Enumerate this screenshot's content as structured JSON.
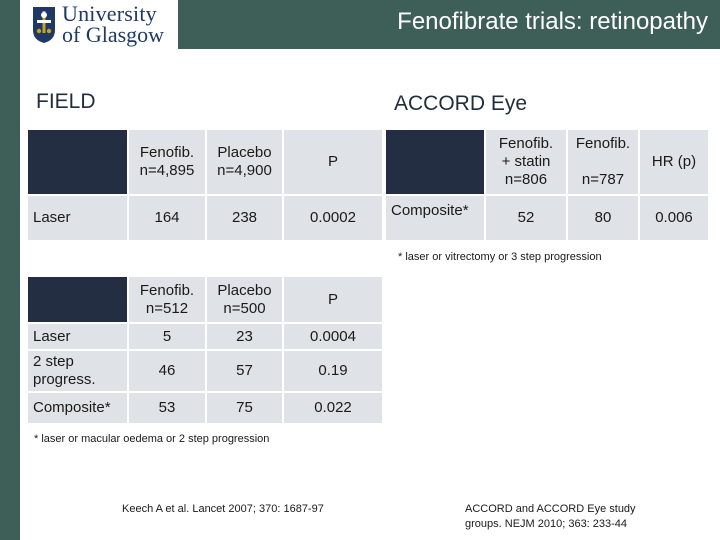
{
  "header": {
    "title": "Fenofibrate trials: retinopathy",
    "logo_line1": "University",
    "logo_line2": "of Glasgow"
  },
  "colors": {
    "header_band": "#3d5f57",
    "table_header_dark": "#232e42",
    "table_cell": "#dfe2e6"
  },
  "field": {
    "title": "FIELD",
    "table1": {
      "headers": [
        "Fenofib.\nn=4,895",
        "Placebo\nn=4,900",
        "P"
      ],
      "rows": [
        {
          "label": "Laser",
          "values": [
            "164",
            "238",
            "0.0002"
          ]
        }
      ]
    },
    "table2": {
      "headers": [
        "Fenofib.\nn=512",
        "Placebo\nn=500",
        "P"
      ],
      "rows": [
        {
          "label": "Laser",
          "values": [
            "5",
            "23",
            "0.0004"
          ]
        },
        {
          "label": "2 step\nprogress.",
          "values": [
            "46",
            "57",
            "0.19"
          ]
        },
        {
          "label": "Composite*",
          "values": [
            "53",
            "75",
            "0.022"
          ]
        }
      ]
    },
    "footnote": "* laser or macular oedema or 2 step progression",
    "reference": "Keech A et al. Lancet 2007; 370: 1687-97"
  },
  "accord": {
    "title": "ACCORD Eye",
    "headers": [
      "Fenofib.\n+ statin\nn=806",
      "Fenofib.\n\nn=787",
      "HR (p)"
    ],
    "rows": [
      {
        "label": "Composite*",
        "values": [
          "52",
          "80",
          "0.006"
        ]
      }
    ],
    "footnote": "* laser or vitrectomy or 3 step progression",
    "reference": "ACCORD and ACCORD Eye study groups. NEJM 2010; 363: 233-44"
  }
}
